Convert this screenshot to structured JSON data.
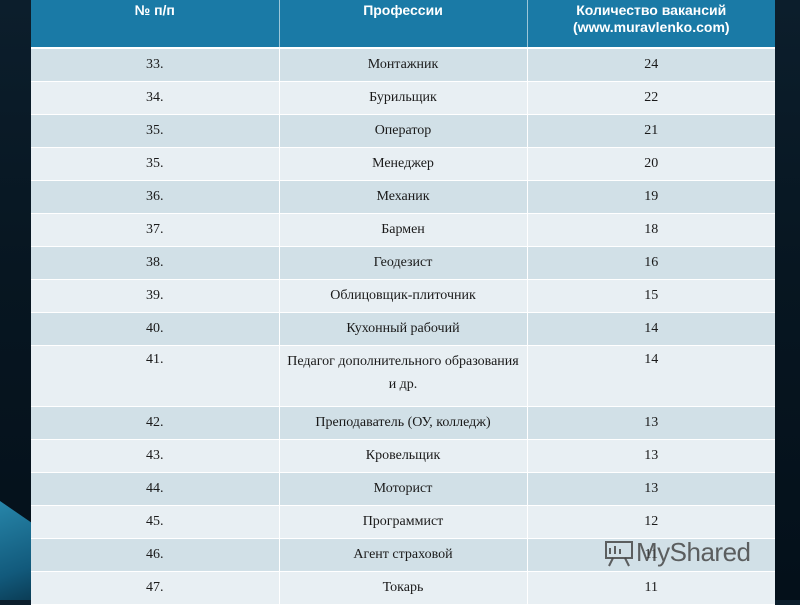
{
  "table": {
    "headers": [
      "№ п/п",
      "Профессии",
      "Количество вакансий\n(www.muravlenko.com)"
    ],
    "rows": [
      {
        "num": "33.",
        "profession": "Монтажник",
        "count": "24"
      },
      {
        "num": "34.",
        "profession": "Бурильщик",
        "count": "22"
      },
      {
        "num": "35.",
        "profession": "Оператор",
        "count": "21"
      },
      {
        "num": "35.",
        "profession": "Менеджер",
        "count": "20"
      },
      {
        "num": "36.",
        "profession": "Механик",
        "count": "19"
      },
      {
        "num": "37.",
        "profession": "Бармен",
        "count": "18"
      },
      {
        "num": "38.",
        "profession": "Геодезист",
        "count": "16"
      },
      {
        "num": "39.",
        "profession": "Облицовщик-плиточник",
        "count": "15"
      },
      {
        "num": "40.",
        "profession": "Кухонный рабочий",
        "count": "14"
      },
      {
        "num": "41.",
        "profession": "Педагог дополнительного образования и др.",
        "count": "14"
      },
      {
        "num": "42.",
        "profession": "Преподаватель (ОУ, колледж)",
        "count": "13"
      },
      {
        "num": "43.",
        "profession": "Кровельщик",
        "count": "13"
      },
      {
        "num": "44.",
        "profession": "Моторист",
        "count": "13"
      },
      {
        "num": "45.",
        "profession": "Программист",
        "count": "12"
      },
      {
        "num": "46.",
        "profession": "Агент страховой",
        "count": "11"
      },
      {
        "num": "47.",
        "profession": "Токарь",
        "count": "11"
      }
    ]
  },
  "watermark": {
    "text": "MyShared"
  }
}
